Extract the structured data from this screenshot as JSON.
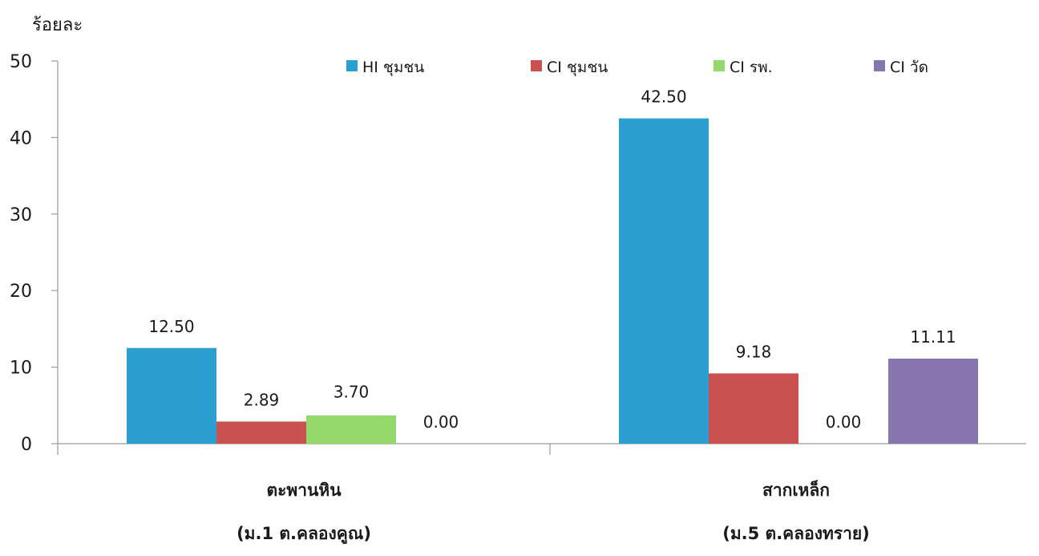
{
  "chart_data": {
    "type": "bar",
    "title": "",
    "ylabel": "ร้อยละ",
    "xlabel": "",
    "ylim": [
      0,
      50
    ],
    "yticks": [
      0,
      10,
      20,
      30,
      40,
      50
    ],
    "grid": false,
    "legend_position": "top",
    "categories": [
      {
        "line1": "ตะพานหิน",
        "line2": "(ม.1 ต.คลองคูณ)"
      },
      {
        "line1": "สากเหล็ก",
        "line2": "(ม.5 ต.คลองทราย)"
      }
    ],
    "series": [
      {
        "name": "HI ชุมชน",
        "color": "#2a9fd0",
        "values": [
          12.5,
          42.5
        ],
        "labels": [
          "12.50",
          "42.50"
        ]
      },
      {
        "name": "CI ชุมชน",
        "color": "#c9514f",
        "values": [
          2.89,
          9.18
        ],
        "labels": [
          "2.89",
          "9.18"
        ]
      },
      {
        "name": "CI รพ.",
        "color": "#93d96c",
        "values": [
          3.7,
          0.0
        ],
        "labels": [
          "3.70",
          "0.00"
        ]
      },
      {
        "name": "CI วัด",
        "color": "#8676ad",
        "values": [
          0.0,
          11.11
        ],
        "labels": [
          "0.00",
          "11.11"
        ]
      }
    ]
  }
}
